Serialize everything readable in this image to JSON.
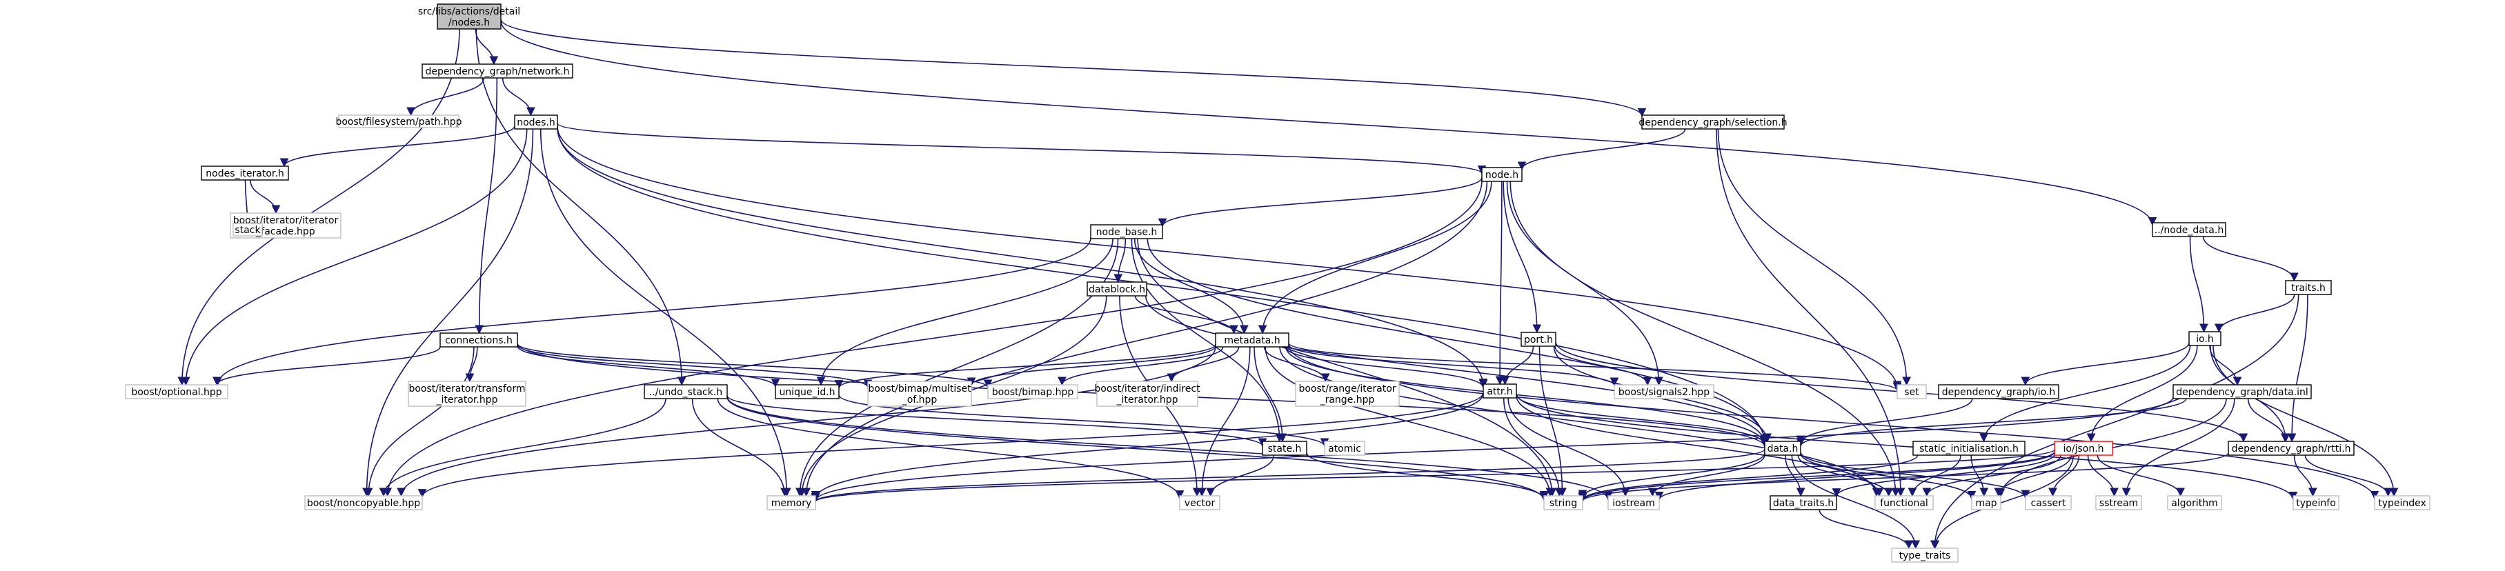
{
  "diagram": {
    "root": "src/libs/actions/detail/nodes.h",
    "nodes": [
      {
        "id": "root",
        "label": [
          "src/libs/actions/detail",
          "/nodes.h"
        ],
        "kind": "root"
      },
      {
        "id": "network",
        "label": [
          "dependency_graph/network.h"
        ],
        "kind": "file"
      },
      {
        "id": "fs_path",
        "label": [
          "boost/filesystem/path.hpp"
        ],
        "kind": "missing"
      },
      {
        "id": "nodes",
        "label": [
          "nodes.h"
        ],
        "kind": "file"
      },
      {
        "id": "selection",
        "label": [
          "dependency_graph/selection.h"
        ],
        "kind": "file"
      },
      {
        "id": "nodes_iterator",
        "label": [
          "nodes_iterator.h"
        ],
        "kind": "file"
      },
      {
        "id": "iter_facade",
        "label": [
          "boost/iterator/iterator",
          "_facade.hpp"
        ],
        "kind": "missing"
      },
      {
        "id": "stack",
        "label": [
          "stack"
        ],
        "kind": "missing"
      },
      {
        "id": "node",
        "label": [
          "node.h"
        ],
        "kind": "file"
      },
      {
        "id": "node_base",
        "label": [
          "node_base.h"
        ],
        "kind": "file"
      },
      {
        "id": "datablock",
        "label": [
          "datablock.h"
        ],
        "kind": "file"
      },
      {
        "id": "connections",
        "label": [
          "connections.h"
        ],
        "kind": "file"
      },
      {
        "id": "metadata",
        "label": [
          "metadata.h"
        ],
        "kind": "file"
      },
      {
        "id": "port",
        "label": [
          "port.h"
        ],
        "kind": "file"
      },
      {
        "id": "node_data",
        "label": [
          "../node_data.h"
        ],
        "kind": "file"
      },
      {
        "id": "traits",
        "label": [
          "traits.h"
        ],
        "kind": "file"
      },
      {
        "id": "io",
        "label": [
          "io.h"
        ],
        "kind": "file"
      },
      {
        "id": "optional",
        "label": [
          "boost/optional.hpp"
        ],
        "kind": "missing"
      },
      {
        "id": "iter_transform",
        "label": [
          "boost/iterator/transform",
          "_iterator.hpp"
        ],
        "kind": "missing"
      },
      {
        "id": "undo_stack",
        "label": [
          "../undo_stack.h"
        ],
        "kind": "file"
      },
      {
        "id": "unique_id",
        "label": [
          "unique_id.h"
        ],
        "kind": "file"
      },
      {
        "id": "multiset_of",
        "label": [
          "boost/bimap/multiset",
          "_of.hpp"
        ],
        "kind": "missing"
      },
      {
        "id": "bimap",
        "label": [
          "boost/bimap.hpp"
        ],
        "kind": "missing"
      },
      {
        "id": "indirect_iter",
        "label": [
          "boost/iterator/indirect",
          "_iterator.hpp"
        ],
        "kind": "missing"
      },
      {
        "id": "range_iter",
        "label": [
          "boost/range/iterator",
          "_range.hpp"
        ],
        "kind": "missing"
      },
      {
        "id": "attr",
        "label": [
          "attr.h"
        ],
        "kind": "file"
      },
      {
        "id": "signals2",
        "label": [
          "boost/signals2.hpp"
        ],
        "kind": "missing"
      },
      {
        "id": "set",
        "label": [
          "set"
        ],
        "kind": "missing"
      },
      {
        "id": "dg_io",
        "label": [
          "dependency_graph/io.h"
        ],
        "kind": "file"
      },
      {
        "id": "dg_data_inl",
        "label": [
          "dependency_graph/data.inl"
        ],
        "kind": "file"
      },
      {
        "id": "state",
        "label": [
          "state.h"
        ],
        "kind": "file"
      },
      {
        "id": "atomic",
        "label": [
          "atomic"
        ],
        "kind": "missing"
      },
      {
        "id": "data",
        "label": [
          "data.h"
        ],
        "kind": "file"
      },
      {
        "id": "static_init",
        "label": [
          "static_initialisation.h"
        ],
        "kind": "file"
      },
      {
        "id": "io_json",
        "label": [
          "io/json.h"
        ],
        "kind": "red"
      },
      {
        "id": "dg_rtti",
        "label": [
          "dependency_graph/rtti.h"
        ],
        "kind": "file"
      },
      {
        "id": "noncopyable",
        "label": [
          "boost/noncopyable.hpp"
        ],
        "kind": "missing"
      },
      {
        "id": "memory",
        "label": [
          "memory"
        ],
        "kind": "missing"
      },
      {
        "id": "vector",
        "label": [
          "vector"
        ],
        "kind": "missing"
      },
      {
        "id": "string",
        "label": [
          "string"
        ],
        "kind": "missing"
      },
      {
        "id": "iostream",
        "label": [
          "iostream"
        ],
        "kind": "missing"
      },
      {
        "id": "data_traits",
        "label": [
          "data_traits.h"
        ],
        "kind": "file"
      },
      {
        "id": "functional",
        "label": [
          "functional"
        ],
        "kind": "missing"
      },
      {
        "id": "map",
        "label": [
          "map"
        ],
        "kind": "missing"
      },
      {
        "id": "cassert",
        "label": [
          "cassert"
        ],
        "kind": "missing"
      },
      {
        "id": "sstream",
        "label": [
          "sstream"
        ],
        "kind": "missing"
      },
      {
        "id": "algorithm",
        "label": [
          "algorithm"
        ],
        "kind": "missing"
      },
      {
        "id": "typeinfo",
        "label": [
          "typeinfo"
        ],
        "kind": "missing"
      },
      {
        "id": "typeindex",
        "label": [
          "typeindex"
        ],
        "kind": "missing"
      },
      {
        "id": "type_traits",
        "label": [
          "type_traits"
        ],
        "kind": "missing"
      }
    ],
    "edges": [
      [
        "root",
        "network"
      ],
      [
        "root",
        "optional"
      ],
      [
        "root",
        "undo_stack"
      ],
      [
        "root",
        "selection"
      ],
      [
        "root",
        "node_data"
      ],
      [
        "network",
        "fs_path"
      ],
      [
        "network",
        "nodes"
      ],
      [
        "network",
        "connections"
      ],
      [
        "nodes",
        "nodes_iterator"
      ],
      [
        "nodes",
        "optional"
      ],
      [
        "nodes",
        "noncopyable"
      ],
      [
        "nodes",
        "memory"
      ],
      [
        "nodes",
        "node"
      ],
      [
        "nodes",
        "set"
      ],
      [
        "nodes",
        "data"
      ],
      [
        "nodes",
        "attr"
      ],
      [
        "nodes_iterator",
        "iter_facade"
      ],
      [
        "nodes_iterator",
        "stack"
      ],
      [
        "selection",
        "node"
      ],
      [
        "selection",
        "set"
      ],
      [
        "selection",
        "functional"
      ],
      [
        "node",
        "node_base"
      ],
      [
        "node",
        "metadata"
      ],
      [
        "node",
        "port"
      ],
      [
        "node",
        "attr"
      ],
      [
        "node",
        "signals2"
      ],
      [
        "node",
        "functional"
      ],
      [
        "node",
        "noncopyable"
      ],
      [
        "node",
        "memory"
      ],
      [
        "node_base",
        "datablock"
      ],
      [
        "node_base",
        "metadata"
      ],
      [
        "node_base",
        "unique_id"
      ],
      [
        "node_base",
        "optional"
      ],
      [
        "node_base",
        "memory"
      ],
      [
        "node_base",
        "string"
      ],
      [
        "node_base",
        "data"
      ],
      [
        "node_base",
        "state"
      ],
      [
        "datablock",
        "metadata"
      ],
      [
        "datablock",
        "data"
      ],
      [
        "datablock",
        "memory"
      ],
      [
        "datablock",
        "vector"
      ],
      [
        "connections",
        "optional"
      ],
      [
        "connections",
        "iter_transform"
      ],
      [
        "connections",
        "noncopyable"
      ],
      [
        "connections",
        "multiset_of"
      ],
      [
        "connections",
        "bimap"
      ],
      [
        "connections",
        "unique_id"
      ],
      [
        "connections",
        "data"
      ],
      [
        "metadata",
        "unique_id"
      ],
      [
        "metadata",
        "multiset_of"
      ],
      [
        "metadata",
        "bimap"
      ],
      [
        "metadata",
        "indirect_iter"
      ],
      [
        "metadata",
        "range_iter"
      ],
      [
        "metadata",
        "attr"
      ],
      [
        "metadata",
        "signals2"
      ],
      [
        "metadata",
        "set"
      ],
      [
        "metadata",
        "state"
      ],
      [
        "metadata",
        "vector"
      ],
      [
        "metadata",
        "string"
      ],
      [
        "metadata",
        "data"
      ],
      [
        "metadata",
        "noncopyable"
      ],
      [
        "metadata",
        "typeindex"
      ],
      [
        "metadata",
        "functional"
      ],
      [
        "port",
        "attr"
      ],
      [
        "port",
        "signals2"
      ],
      [
        "port",
        "data"
      ],
      [
        "port",
        "string"
      ],
      [
        "port",
        "dg_rtti"
      ],
      [
        "node_data",
        "io"
      ],
      [
        "node_data",
        "traits"
      ],
      [
        "traits",
        "io"
      ],
      [
        "traits",
        "dg_rtti"
      ],
      [
        "traits",
        "type_traits"
      ],
      [
        "io",
        "dg_io"
      ],
      [
        "io",
        "dg_data_inl"
      ],
      [
        "io",
        "static_init"
      ],
      [
        "io",
        "io_json"
      ],
      [
        "io",
        "typeindex"
      ],
      [
        "io",
        "dg_rtti"
      ],
      [
        "undo_stack",
        "state"
      ],
      [
        "undo_stack",
        "noncopyable"
      ],
      [
        "undo_stack",
        "string"
      ],
      [
        "undo_stack",
        "vector"
      ],
      [
        "undo_stack",
        "memory"
      ],
      [
        "undo_stack",
        "iostream"
      ],
      [
        "unique_id",
        "atomic"
      ],
      [
        "attr",
        "data"
      ],
      [
        "attr",
        "string"
      ],
      [
        "attr",
        "functional"
      ],
      [
        "attr",
        "iostream"
      ],
      [
        "attr",
        "memory"
      ],
      [
        "attr",
        "noncopyable"
      ],
      [
        "attr",
        "typeinfo"
      ],
      [
        "dg_io",
        "data"
      ],
      [
        "dg_data_inl",
        "data"
      ],
      [
        "dg_data_inl",
        "dg_rtti"
      ],
      [
        "dg_data_inl",
        "sstream"
      ],
      [
        "dg_data_inl",
        "map"
      ],
      [
        "dg_data_inl",
        "memory"
      ],
      [
        "state",
        "vector"
      ],
      [
        "state",
        "string"
      ],
      [
        "data",
        "data_traits"
      ],
      [
        "data",
        "functional"
      ],
      [
        "data",
        "map"
      ],
      [
        "data",
        "memory"
      ],
      [
        "data",
        "string"
      ],
      [
        "data",
        "cassert"
      ],
      [
        "data",
        "iostream"
      ],
      [
        "data",
        "type_traits"
      ],
      [
        "static_init",
        "functional"
      ],
      [
        "static_init",
        "map"
      ],
      [
        "static_init",
        "string"
      ],
      [
        "io_json",
        "string"
      ],
      [
        "io_json",
        "memory"
      ],
      [
        "io_json",
        "functional"
      ],
      [
        "io_json",
        "map"
      ],
      [
        "io_json",
        "cassert"
      ],
      [
        "io_json",
        "sstream"
      ],
      [
        "io_json",
        "algorithm"
      ],
      [
        "io_json",
        "type_traits"
      ],
      [
        "io_json",
        "iostream"
      ],
      [
        "io_json",
        "data_traits"
      ],
      [
        "dg_rtti",
        "typeinfo"
      ],
      [
        "dg_rtti",
        "typeindex"
      ],
      [
        "dg_rtti",
        "string"
      ],
      [
        "data_traits",
        "type_traits"
      ]
    ]
  }
}
